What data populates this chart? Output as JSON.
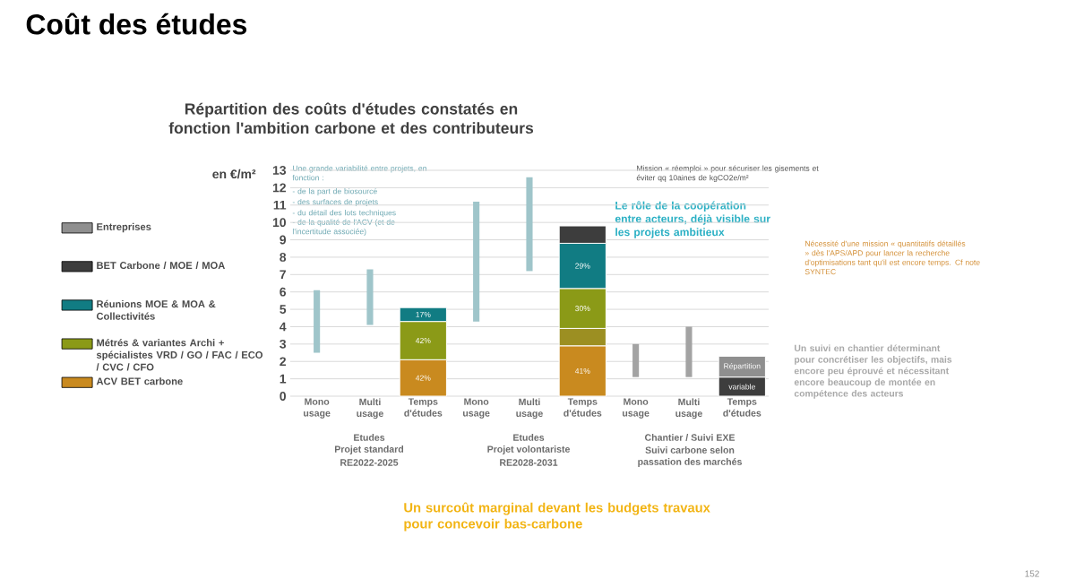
{
  "chart_data": {
    "type": "bar",
    "title": "Coût des études",
    "subtitle": "Répartition des coûts d'études constatés en fonction l'ambition carbone et des contributeurs",
    "ylabel": "en €/m²",
    "categories": [
      "Mono usage",
      "Multi usage",
      "Temps d'études",
      "Mono usage",
      "Multi usage",
      "Temps d'études",
      "Mono usage",
      "Multi usage",
      "Temps d'études"
    ],
    "ylim": [
      0,
      13
    ],
    "yticks": [
      0,
      1,
      2,
      3,
      4,
      5,
      6,
      7,
      8,
      9,
      10,
      11,
      12,
      13
    ],
    "grid": "y",
    "legend": "left",
    "stacked": true,
    "series": [
      {
        "type": "bar",
        "base": [
          2.5,
          4.1,
          null,
          4.3,
          7.2,
          null,
          1.1,
          1.1,
          null
        ],
        "values": [
          3.6,
          3.2,
          null,
          6.9,
          5.4,
          null,
          1.9,
          2.9,
          null
        ],
        "colors": [
          "#9fc5ca",
          "#9fc5ca",
          "#9fc5ca",
          "#9fc5ca",
          "#9fc5ca",
          "#9fc5ca",
          "#a3a3a3",
          "#a3a3a3",
          "#a3a3a3"
        ]
      },
      {
        "name": "ACV BET carbone",
        "color": "#c98a1f",
        "values": [
          null,
          null,
          2.1,
          null,
          null,
          2.9,
          null,
          null,
          null
        ]
      },
      {
        "color": "#9c8f22",
        "values": [
          null,
          null,
          null,
          null,
          null,
          1.0,
          null,
          null,
          null
        ]
      },
      {
        "name": "Métrés & variantes Archi + spécialistes VRD / GO / FAC / ECO / CVC / CFO",
        "color": "#8b9a17",
        "values": [
          null,
          null,
          2.2,
          null,
          null,
          2.3,
          null,
          null,
          null
        ]
      },
      {
        "name": "Réunions MOE & MOA & Collectivités",
        "color": "#117c83",
        "values": [
          null,
          null,
          0.8,
          null,
          null,
          2.6,
          null,
          null,
          null
        ]
      },
      {
        "name": "BET Carbone / MOE / MOA",
        "color": "#3d3d3d",
        "values": [
          null,
          null,
          null,
          null,
          null,
          1.0,
          null,
          null,
          1.1
        ],
        "value_labels": [
          null,
          null,
          null,
          null,
          null,
          null,
          null,
          null,
          "variable"
        ]
      },
      {
        "name": "Entreprises",
        "color": "#8f8f8f",
        "values": [
          null,
          null,
          null,
          null,
          null,
          null,
          null,
          null,
          1.2
        ],
        "value_labels": [
          null,
          null,
          null,
          null,
          null,
          null,
          null,
          null,
          "Répartition"
        ]
      }
    ],
    "annotations": [
      "Etudes",
      "Projet standard",
      "RE2022-2025",
      "Etudes",
      "Projet volontariste",
      "RE2028-2031",
      "Chantier / Suivi EXE",
      "Suivi carbone selon",
      "passation des marchés",
      "Une grande variabilité entre projets, en fonction :",
      "- de la part de biosourcé",
      "- des surfaces de projets",
      "- du détail des lots techniques",
      "- de la qualité de l'ACV (et de l'incertitude associée)",
      "Mission « réemploi » pour sécuriser les gisements et éviter qq 10aines de kgCO2e/m²",
      "Le rôle de la coopération entre acteurs, déjà visible sur les projets ambitieux",
      "Nécessité d'une mission « quantitatifs détaillés » dès l'APS/APD pour lancer la recherche d'optimisations tant qu'il est encore temps. Cf note SYNTEC",
      "Un suivi en chantier déterminant pour concrétiser les objectifs, mais encore peu éprouvé et nécessitant encore beaucoup de montée en compétence des acteurs",
      "Un surcoût marginal devant les budgets travaux pour concevoir bas-carbone",
      "152",
      "42%",
      "42%",
      "17%",
      "41%",
      "30%",
      "29%"
    ]
  }
}
